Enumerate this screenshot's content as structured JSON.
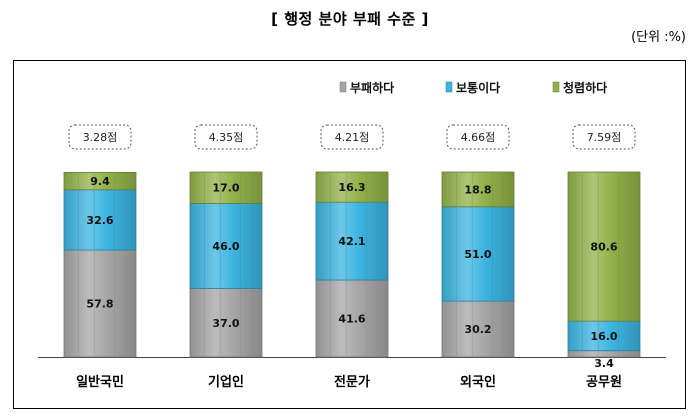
{
  "header": {
    "title": "[ 행정 분야 부패 수준 ]",
    "unit": "(단위 :%)"
  },
  "colors": {
    "corrupt": "#a6a6a6",
    "normal": "#3cb4e0",
    "clean": "#92b14a"
  },
  "chart_data": {
    "type": "bar",
    "stacked": true,
    "title": "[ 행정 분야 부패 수준 ]",
    "unit": "(단위 :%)",
    "categories": [
      "일반국민",
      "기업인",
      "전문가",
      "외국인",
      "공무원"
    ],
    "scores": [
      "3.28점",
      "4.35점",
      "4.21점",
      "4.66점",
      "7.59점"
    ],
    "series": [
      {
        "name": "부패하다",
        "values": [
          57.8,
          37.0,
          41.6,
          30.2,
          3.4
        ],
        "labels": [
          "57.8",
          "37.0",
          "41.6",
          "30.2",
          "3.4"
        ]
      },
      {
        "name": "보통이다",
        "values": [
          32.6,
          46.0,
          42.1,
          51.0,
          16.0
        ],
        "labels": [
          "32.6",
          "46.0",
          "42.1",
          "51.0",
          "16.0"
        ]
      },
      {
        "name": "청렴하다",
        "values": [
          9.4,
          17.0,
          16.3,
          18.8,
          80.6
        ],
        "labels": [
          "9.4",
          "17.0",
          "16.3",
          "18.8",
          "80.6"
        ]
      }
    ],
    "ylim": [
      0,
      100
    ],
    "grid": false,
    "legend_position": "top-right"
  }
}
